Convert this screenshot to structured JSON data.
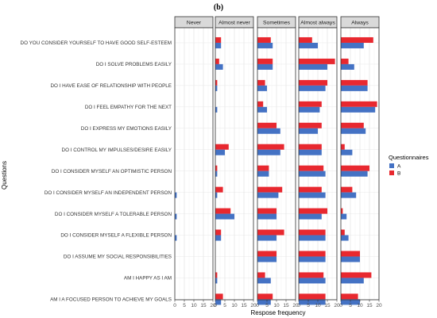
{
  "figure_label": "(b)",
  "chart_data": {
    "type": "bar",
    "orientation": "horizontal",
    "figure_label": "(b)",
    "xlabel": "Respose frequency",
    "ylabel": "Questions",
    "xlim": [
      0,
      20
    ],
    "x_ticks": [
      0,
      5,
      10,
      15,
      20
    ],
    "grid": true,
    "facets": [
      "Never",
      "Almost never",
      "Sometimes",
      "Almost always",
      "Always"
    ],
    "questions": [
      "DO YOU CONSIDER YOURSELF TO HAVE GOOD SELF-ESTEEM",
      "DO I SOLVE PROBLEMS EASILY",
      "DO I HAVE EASE OF RELATIONSHIP WITH PEOPLE",
      "DO I FEEL EMPATHY FOR THE NEXT",
      "DO I EXPRESS MY EMOTIONS EASILY",
      "DO I CONTROL MY IMPULSES/DESIRE EASILY",
      "DO I CONSIDER MYSELF AN OPTIMISTIC PERSON",
      "DO I CONSIDER MYSELF AN INDEPENDENT PERSON",
      "DO I CONSIDER MYSELF A TOLERABLE PERSON",
      "DO I CONSIDER MYSELF A FLEXIBLE PERSON",
      "DO I ASSUME MY SOCIAL RESPONSIBILITIES",
      "AM I HAPPY AS I AM",
      "AM I A FOCUSED PERSON TO ACHIEVE MY GOALS"
    ],
    "legend": {
      "title": "Questionnaires",
      "position": "right",
      "items": [
        {
          "name": "A",
          "color": "#4472c4"
        },
        {
          "name": "B",
          "color": "#e8282f"
        }
      ]
    },
    "series": [
      {
        "name": "A",
        "color": "#4472c4",
        "values": [
          [
            0,
            3,
            8,
            10,
            12
          ],
          [
            0,
            4,
            8,
            15,
            7
          ],
          [
            0,
            1,
            5,
            14,
            14
          ],
          [
            0,
            1,
            5,
            11,
            18
          ],
          [
            0,
            0,
            12,
            10,
            13
          ],
          [
            0,
            5,
            12,
            12,
            6
          ],
          [
            0,
            1,
            6,
            14,
            14
          ],
          [
            1,
            1,
            11,
            14,
            8
          ],
          [
            1,
            10,
            10,
            12,
            3
          ],
          [
            1,
            3,
            10,
            14,
            4
          ],
          [
            0,
            0,
            10,
            14,
            10
          ],
          [
            0,
            1,
            7,
            14,
            12
          ],
          [
            0,
            3,
            7,
            14,
            10
          ]
        ]
      },
      {
        "name": "B",
        "color": "#e8282f",
        "values": [
          [
            0,
            3,
            7,
            7,
            17
          ],
          [
            0,
            2,
            8,
            19,
            4
          ],
          [
            0,
            1,
            4,
            15,
            14
          ],
          [
            0,
            0,
            3,
            12,
            19
          ],
          [
            0,
            0,
            10,
            12,
            12
          ],
          [
            0,
            7,
            14,
            12,
            2
          ],
          [
            0,
            1,
            6,
            13,
            15
          ],
          [
            0,
            4,
            13,
            12,
            6
          ],
          [
            0,
            8,
            10,
            15,
            1
          ],
          [
            0,
            3,
            14,
            14,
            2
          ],
          [
            0,
            0,
            10,
            14,
            10
          ],
          [
            0,
            1,
            4,
            13,
            16
          ],
          [
            0,
            4,
            8,
            14,
            9
          ]
        ]
      }
    ]
  }
}
